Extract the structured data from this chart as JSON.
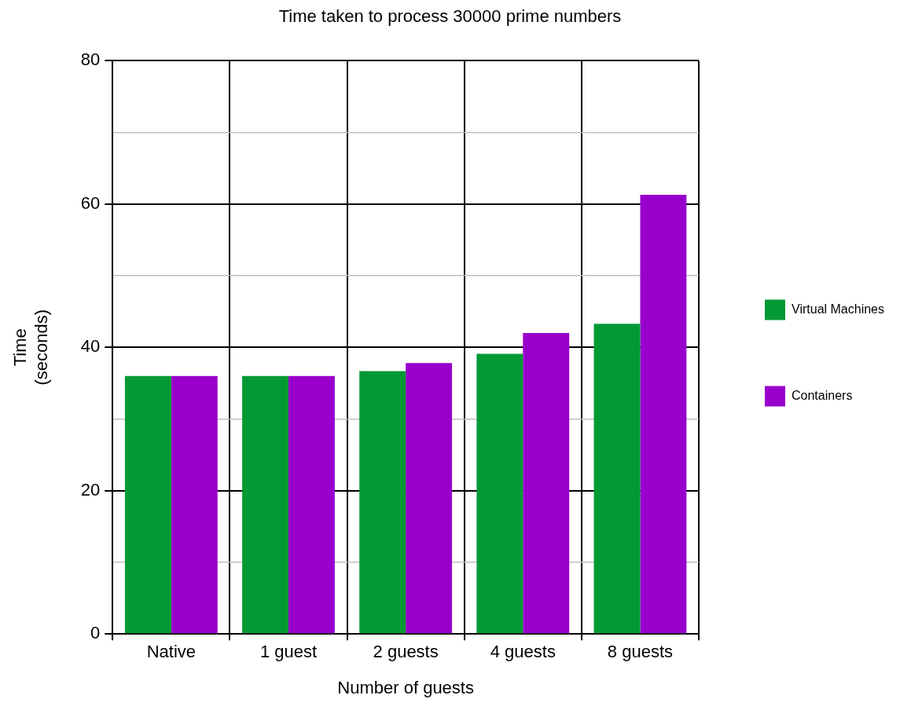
{
  "chart_data": {
    "type": "bar",
    "title": "Time taken to process 30000 prime numbers",
    "xlabel": "Number of guests",
    "ylabel": "Time (seconds)",
    "categories": [
      "Native",
      "1 guest",
      "2 guests",
      "4 guests",
      "8 guests"
    ],
    "series": [
      {
        "name": "Virtual Machines",
        "color": "#039933",
        "values": [
          36,
          36,
          36.7,
          39.1,
          43.3
        ]
      },
      {
        "name": "Containers",
        "color": "#9900cc",
        "values": [
          36,
          36,
          37.8,
          42,
          61.3
        ]
      }
    ],
    "ylim": [
      0,
      80
    ],
    "yticks": [
      0,
      {
        "value": 10,
        "label": null
      },
      20,
      {
        "value": 30,
        "label": null
      },
      40,
      {
        "value": 50,
        "label": null
      },
      60,
      {
        "value": 70,
        "label": null
      },
      80
    ],
    "grid": true,
    "legend": "right"
  }
}
